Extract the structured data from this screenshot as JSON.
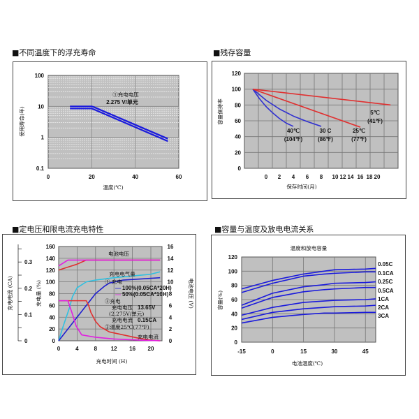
{
  "chart_data": [
    {
      "type": "line",
      "section_title": "■不同温度下的浮充寿命",
      "xlabel": "温度(℃)",
      "ylabel": "使用寿命(年)",
      "xlim": [
        0,
        60
      ],
      "ylim": [
        0.1,
        100
      ],
      "y_scale": "log",
      "grid": true,
      "xticks": [
        "0",
        "20",
        "40",
        "60"
      ],
      "yticks": [
        "0.1",
        "1",
        "10",
        "100"
      ],
      "annotation": [
        "①充电电压",
        "2.275 V/单元"
      ],
      "series": [
        {
          "x": [
            10,
            20,
            21,
            55
          ],
          "y": [
            10,
            10,
            9.5,
            0.9
          ]
        },
        {
          "x": [
            10,
            20,
            21,
            55
          ],
          "y": [
            8.5,
            8.5,
            8,
            0.75
          ]
        }
      ],
      "color": "#1a1adc"
    },
    {
      "type": "line",
      "section_title": "■残存容量",
      "xlabel": "保存时间(月)",
      "ylabel": "容量保持率",
      "ylim": [
        0,
        120
      ],
      "grid": true,
      "xticks": [
        "0",
        "2",
        "4",
        "6",
        "8",
        "10",
        "12",
        "14",
        "16",
        "18",
        "20"
      ],
      "yticks": [
        "0",
        "20",
        "40",
        "60",
        "80",
        "100",
        "120"
      ],
      "series": [
        {
          "name": "40℃",
          "label2": "(104℉)",
          "color": "#3030d0",
          "x": [
            -2,
            -1,
            0,
            1,
            2,
            3,
            4
          ],
          "y": [
            100,
            88,
            78,
            70,
            63,
            57,
            53
          ]
        },
        {
          "name": "30 C",
          "label2": "(86℉)",
          "color": "#3030d0",
          "x": [
            -2,
            0,
            2,
            4,
            6,
            8
          ],
          "y": [
            100,
            86,
            75,
            66,
            59,
            53
          ]
        },
        {
          "name": "25℃",
          "label2": "(77℉)",
          "color": "#e03030",
          "x": [
            -2,
            16
          ],
          "y": [
            100,
            52
          ]
        },
        {
          "name": "5℃",
          "label2": "(41℉)",
          "color": "#e03030",
          "x": [
            -2,
            23.5
          ],
          "y": [
            100,
            80
          ]
        }
      ]
    },
    {
      "type": "line",
      "section_title": "■定电压和限电流充电特性",
      "xlabel": "充电时间 (H)",
      "ylabel_left": "充电量 (%)",
      "ylabel_far_left": "充电电流 (CA)",
      "ylabel_right": "电池电压 (V)",
      "xlim": [
        0,
        22
      ],
      "ylim": [
        0,
        160
      ],
      "y2lim": [
        0,
        16
      ],
      "grid": true,
      "xticks": [
        "0",
        "4",
        "8",
        "12",
        "16",
        "20"
      ],
      "yticks": [
        "0",
        "20",
        "40",
        "60",
        "80",
        "100",
        "120",
        "140",
        "160"
      ],
      "y2ticks": [
        "0",
        "2",
        "4",
        "6",
        "8",
        "10",
        "12",
        "14",
        "16"
      ],
      "y3ticks": [
        "0",
        "0.1",
        "0.2",
        "0.3"
      ],
      "labels": {
        "voltage": "电池电压",
        "charge": "充电电气量",
        "current": "充电电流"
      },
      "legend": {
        "title1": "① 充电",
        "l100": "100%(0.05CA*20H)",
        "l50": "50%(0.05CA*10H)",
        "title2": "②充电",
        "v": "充电电压",
        "v_val": "13.65V",
        "v_unit": "(2.275V/单元)",
        "i": "充电电流",
        "i_val": "0.15CA",
        "t": "③温度25℃(77℉)"
      },
      "series": [
        {
          "id": "voltage-100",
          "color": "#e03030",
          "x": [
            0,
            2,
            4,
            6,
            22
          ],
          "y": [
            120,
            125,
            130,
            137,
            137
          ]
        },
        {
          "id": "voltage-50",
          "color": "#e020e0",
          "x": [
            0,
            2,
            22
          ],
          "y": [
            127,
            137,
            137
          ]
        },
        {
          "id": "charge-50",
          "color": "#30c0e0",
          "x": [
            0,
            1,
            2.3,
            3,
            4,
            6,
            8,
            12,
            16,
            20,
            22
          ],
          "y": [
            0,
            25,
            55,
            75,
            90,
            100,
            103,
            107,
            110,
            113,
            117
          ]
        },
        {
          "id": "charge-100",
          "color": "#2020d0",
          "x": [
            0,
            2,
            4,
            6,
            8,
            10,
            11,
            14,
            20,
            22
          ],
          "y": [
            0,
            20,
            40,
            60,
            80,
            93,
            98,
            103,
            106,
            107
          ]
        },
        {
          "id": "current-100",
          "color": "#e03030",
          "x": [
            0,
            6,
            6.5,
            7,
            8,
            9,
            11,
            14,
            17,
            20,
            22
          ],
          "y": [
            68,
            68,
            60,
            48,
            33,
            24,
            15,
            10,
            5,
            1,
            0
          ]
        },
        {
          "id": "current-50",
          "color": "#e020e0",
          "x": [
            0,
            2,
            3,
            3.8,
            5,
            8,
            12,
            18,
            22
          ],
          "y": [
            68,
            68,
            45,
            25,
            10,
            6,
            3,
            1,
            0
          ]
        }
      ]
    },
    {
      "type": "line",
      "section_title": "■容量与温度及放电电流关系",
      "title": "温度和放电容量",
      "xlabel": "电池温度(℃)",
      "ylabel": "容量(%)",
      "xlim": [
        -15,
        50
      ],
      "ylim": [
        0,
        120
      ],
      "grid": true,
      "xticks": [
        "-15",
        "0",
        "15",
        "30",
        "45"
      ],
      "yticks": [
        "0",
        "20",
        "40",
        "60",
        "80",
        "100",
        "120"
      ],
      "x": [
        -15,
        0,
        15,
        25,
        30,
        45,
        50
      ],
      "series": [
        {
          "name": "0.05C",
          "y": [
            75,
            87,
            96,
            100,
            102,
            103,
            104
          ]
        },
        {
          "name": "0.1CA",
          "y": [
            70,
            83,
            93,
            96,
            97,
            99,
            99
          ]
        },
        {
          "name": "0.25C",
          "y": [
            52,
            69,
            78,
            81,
            83,
            84,
            85
          ]
        },
        {
          "name": "0.5CA",
          "y": [
            48,
            63,
            71,
            74,
            75,
            77,
            77
          ]
        },
        {
          "name": "1CA",
          "y": [
            38,
            49,
            56,
            58,
            59,
            60,
            61
          ]
        },
        {
          "name": "2CA",
          "y": [
            32,
            42,
            47,
            49,
            50,
            51,
            52
          ]
        },
        {
          "name": "3CA",
          "y": [
            27,
            35,
            39,
            41,
            41,
            42,
            42
          ]
        }
      ],
      "color": "#1a1adc"
    }
  ]
}
